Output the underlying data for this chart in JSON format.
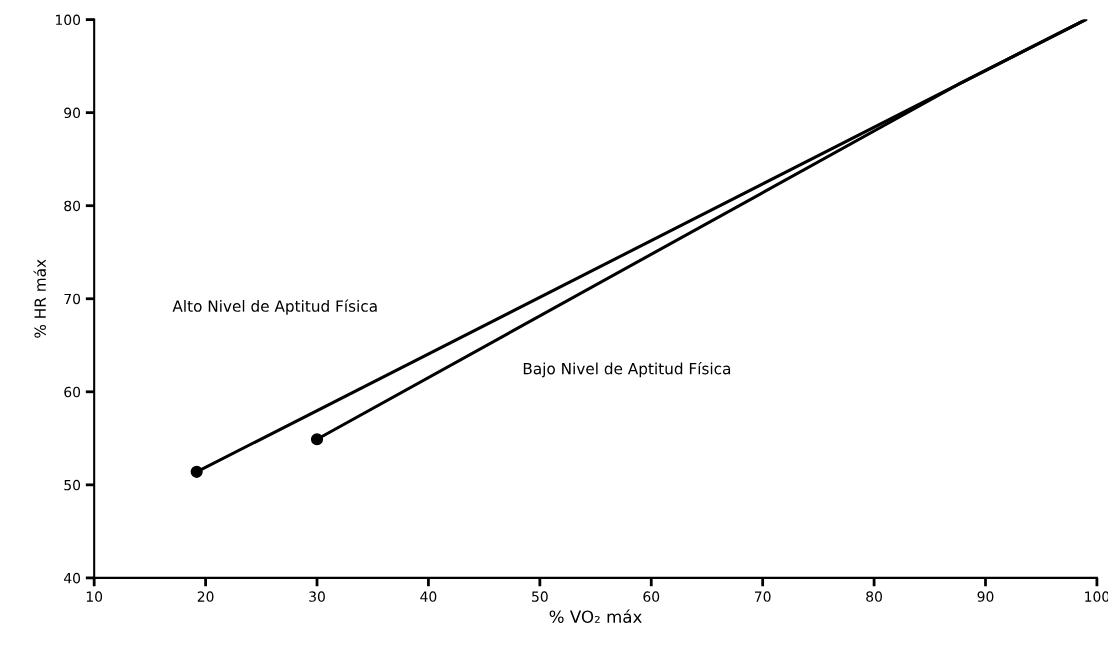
{
  "chart_data": {
    "type": "line",
    "xlabel": "% VO₂ máx",
    "ylabel": "% HR máx",
    "xlim": [
      10,
      100
    ],
    "xticks": [
      10,
      20,
      30,
      40,
      50,
      60,
      70,
      80,
      90,
      100
    ],
    "ylim": [
      40,
      100
    ],
    "yticks": [
      40,
      50,
      60,
      70,
      80,
      90,
      100
    ],
    "grid": false,
    "legend": false,
    "line_style": "solid",
    "series": [
      {
        "color": "#000000",
        "marker": "none",
        "x": [
          19.2,
          99.0
        ],
        "values": [
          51.4,
          100.0
        ]
      },
      {
        "color": "#000000",
        "marker": "none",
        "x": [
          30.0,
          87.5,
          99.0
        ],
        "values": [
          54.9,
          93.0,
          100.0
        ]
      },
      {
        "type": "scatter",
        "color": "#000000",
        "marker": "circle",
        "x": [
          19.2,
          30.0
        ],
        "values": [
          51.4,
          54.9
        ]
      }
    ],
    "annotations": [
      "Alto Nivel de Aptitud Física",
      "Bajo Nivel de Aptitud Física"
    ]
  }
}
